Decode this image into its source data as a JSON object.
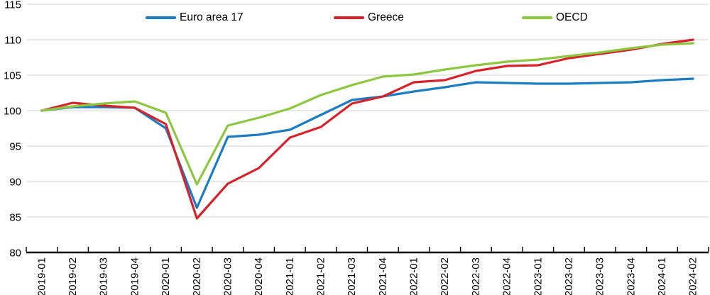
{
  "chart_data": {
    "type": "line",
    "title": "",
    "xlabel": "",
    "ylabel": "",
    "categories": [
      "2019-01",
      "2019-02",
      "2019-03",
      "2019-04",
      "2020-01",
      "2020-02",
      "2020-03",
      "2020-04",
      "2021-01",
      "2021-02",
      "2021-03",
      "2021-04",
      "2022-01",
      "2022-02",
      "2022-03",
      "2022-04",
      "2023-01",
      "2023-02",
      "2023-03",
      "2023-04",
      "2024-01",
      "2024-02"
    ],
    "series": [
      {
        "name": "Euro area 17",
        "color": "#1C7CC2",
        "values": [
          100.0,
          100.5,
          100.5,
          100.4,
          97.5,
          86.3,
          96.3,
          96.6,
          97.3,
          99.4,
          101.5,
          102.0,
          102.7,
          103.3,
          104.0,
          103.9,
          103.8,
          103.8,
          103.9,
          104.0,
          104.3,
          104.5
        ]
      },
      {
        "name": "Greece",
        "color": "#D6232B",
        "values": [
          100.0,
          101.1,
          100.7,
          100.4,
          98.1,
          84.8,
          89.7,
          91.9,
          96.2,
          97.7,
          101.0,
          102.0,
          104.0,
          104.3,
          105.6,
          106.3,
          106.4,
          107.4,
          108.0,
          108.6,
          109.4,
          110.0
        ]
      },
      {
        "name": "OECD",
        "color": "#8DC63F",
        "values": [
          100.0,
          100.6,
          101.0,
          101.3,
          99.7,
          89.6,
          97.9,
          99.0,
          100.3,
          102.2,
          103.6,
          104.8,
          105.1,
          105.8,
          106.4,
          106.9,
          107.2,
          107.7,
          108.2,
          108.8,
          109.3,
          109.5
        ]
      }
    ],
    "ylim": [
      80,
      115
    ],
    "yticks": [
      80,
      85,
      90,
      95,
      100,
      105,
      110,
      115
    ],
    "grid": true,
    "legend_position": "top-inside",
    "gridline_color": "#D9D9D9",
    "axis_color": "#000000",
    "legend_x_positions": [
      205,
      470,
      735
    ]
  }
}
